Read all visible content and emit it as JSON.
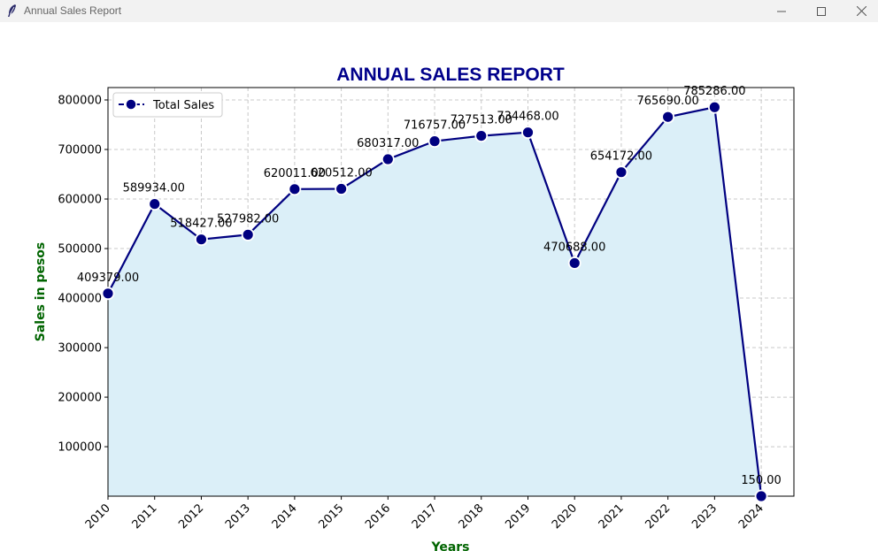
{
  "window": {
    "title": "Annual Sales Report",
    "icons": [
      "feather-icon",
      "minimize-icon",
      "maximize-icon",
      "close-icon"
    ]
  },
  "chart_data": {
    "type": "line",
    "title": "ANNUAL SALES REPORT",
    "xlabel": "Years",
    "ylabel": "Sales in pesos",
    "x": [
      "2010",
      "2011",
      "2012",
      "2013",
      "2014",
      "2015",
      "2016",
      "2017",
      "2018",
      "2019",
      "2020",
      "2021",
      "2022",
      "2023",
      "2024"
    ],
    "series": [
      {
        "name": "Total Sales",
        "values": [
          409379,
          589934,
          518427,
          527982,
          620011,
          620512,
          680317,
          716757,
          727513,
          734468,
          470688,
          654172,
          765690,
          785286,
          150
        ],
        "labels": [
          "409379.00",
          "589934.00",
          "518427.00",
          "527982.00",
          "620011.00",
          "620512.00",
          "680317.00",
          "716757.00",
          "727513.00",
          "734468.00",
          "470688.00",
          "654172.00",
          "765690.00",
          "785286.00",
          "150.00"
        ],
        "line_color": "#000080",
        "fill_color": "#dbeff8",
        "marker": "circle",
        "line_style": "dashed legend / solid line"
      }
    ],
    "yticks": [
      "100000",
      "200000",
      "300000",
      "400000",
      "500000",
      "600000",
      "700000",
      "800000"
    ],
    "ylim": [
      150,
      825000
    ],
    "xlim": [
      2010,
      2024.7
    ],
    "grid": true,
    "legend_position": "top-left",
    "title_color": "#00008b",
    "label_color": "#006400"
  }
}
